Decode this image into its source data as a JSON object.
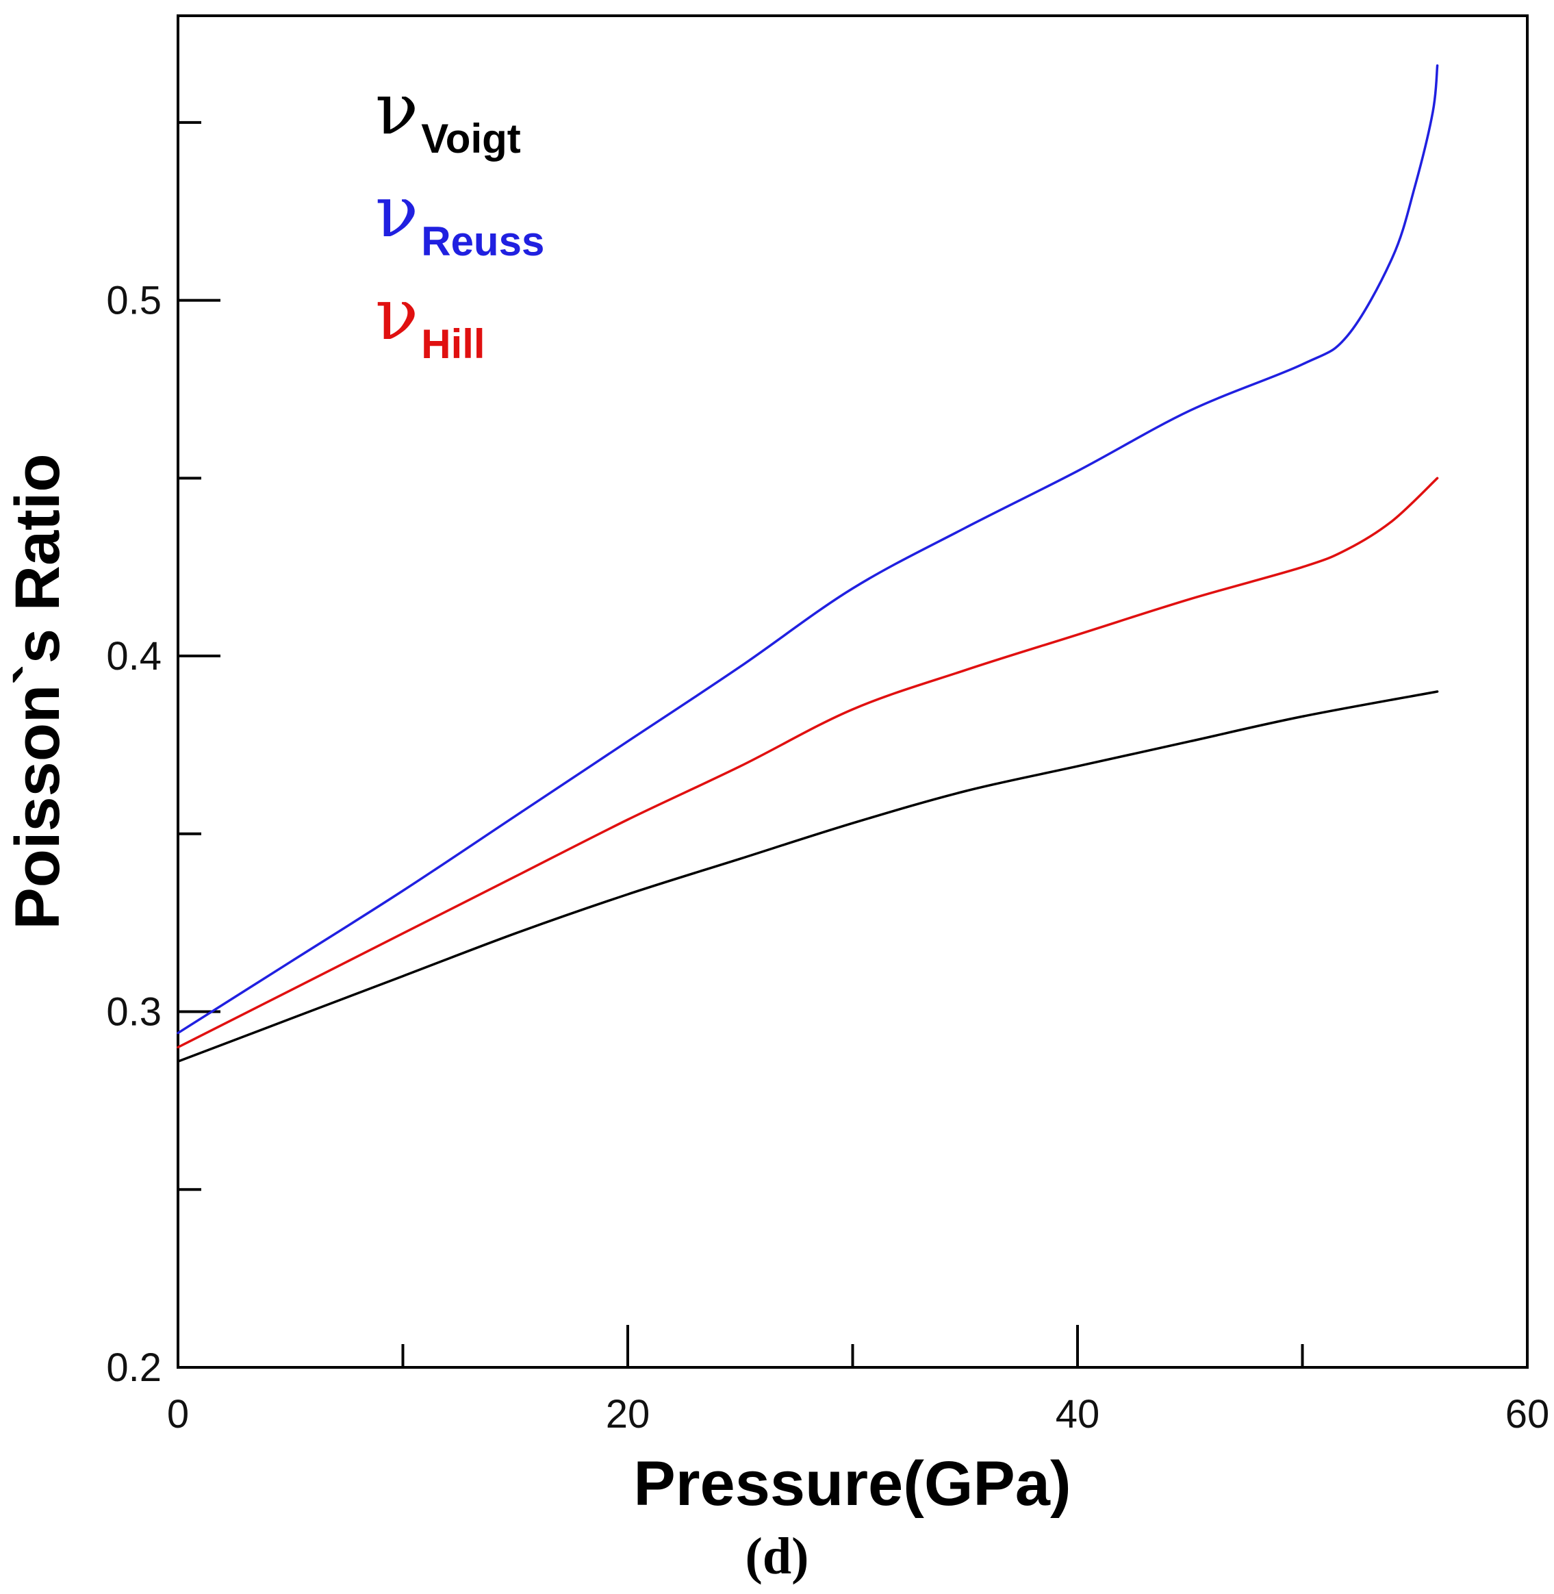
{
  "chart_data": {
    "type": "line",
    "title": "",
    "caption": "(d)",
    "xlabel": "Pressure(GPa)",
    "ylabel": "Poisson`s Ratio",
    "xlim": [
      0,
      60
    ],
    "ylim": [
      0.2,
      0.58
    ],
    "xticks": [
      0,
      20,
      40,
      60
    ],
    "xtick_labels": [
      "0",
      "20",
      "40",
      "60"
    ],
    "yticks": [
      0.2,
      0.3,
      0.4,
      0.5
    ],
    "ytick_labels": [
      "0.2",
      "0.3",
      "0.4",
      "0.5"
    ],
    "grid": false,
    "legend_position": "top-left",
    "series": [
      {
        "name": "Voigt",
        "symbol": "ν",
        "subscript": "Voigt",
        "color": "#000000",
        "x": [
          0,
          5,
          10,
          15,
          20,
          25,
          30,
          35,
          40,
          45,
          50,
          56
        ],
        "y": [
          0.286,
          0.298,
          0.31,
          0.322,
          0.333,
          0.343,
          0.353,
          0.362,
          0.369,
          0.376,
          0.383,
          0.39
        ]
      },
      {
        "name": "Reuss",
        "symbol": "ν",
        "subscript": "Reuss",
        "color": "#2020e0",
        "x": [
          0,
          5,
          10,
          15,
          20,
          25,
          30,
          35,
          40,
          45,
          50,
          52,
          54,
          55,
          55.8,
          56
        ],
        "y": [
          0.294,
          0.314,
          0.334,
          0.355,
          0.376,
          0.397,
          0.419,
          0.436,
          0.452,
          0.469,
          0.482,
          0.49,
          0.512,
          0.532,
          0.553,
          0.566
        ]
      },
      {
        "name": "Hill",
        "symbol": "ν",
        "subscript": "Hill",
        "color": "#e01010",
        "x": [
          0,
          5,
          10,
          15,
          20,
          25,
          30,
          35,
          40,
          45,
          50,
          52,
          54,
          56
        ],
        "y": [
          0.29,
          0.306,
          0.322,
          0.338,
          0.354,
          0.369,
          0.385,
          0.396,
          0.406,
          0.416,
          0.425,
          0.43,
          0.438,
          0.45
        ]
      }
    ]
  }
}
